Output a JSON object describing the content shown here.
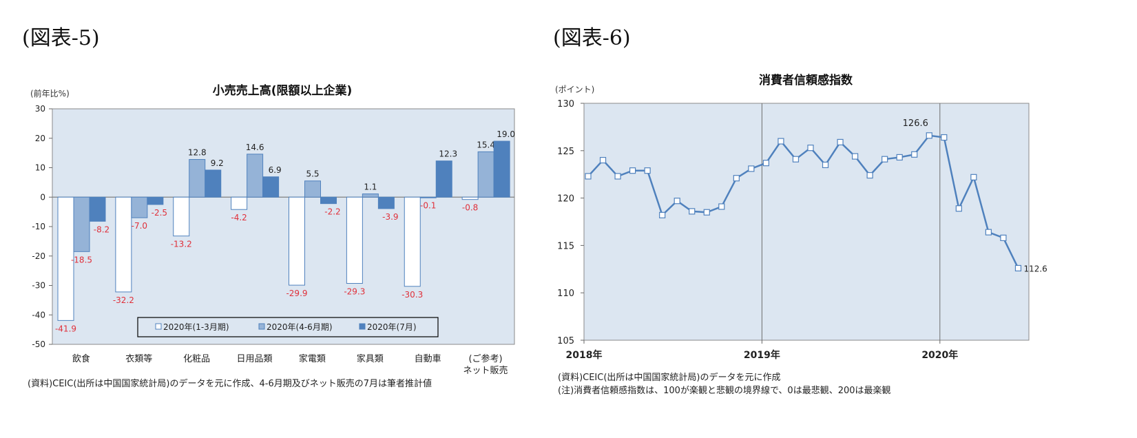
{
  "fig5_label": "(図表-5)",
  "fig6_label": "(図表-6)",
  "charts": {
    "fig5": {
      "title": "小売売上高(限額以上企業)",
      "yunit": "(前年比%)",
      "note": "(資料)CEIC(出所は中国国家統計局)のデータを元に作成、4-6月期及びネット販売の7月は筆者推計値",
      "legend_box_color": "#000000",
      "neg_label_color": "#e0303a"
    },
    "fig6": {
      "title": "消費者信頼感指数",
      "yunit": "(ポイント)",
      "note1": "(資料)CEIC(出所は中国国家統計局)のデータを元に作成",
      "note2": "(注)消費者信頼感指数は、100が楽観と悲観の境界線で、0は最悲観、200は最楽観",
      "peak_label": "126.6",
      "last_label": "112.6"
    }
  },
  "chart_data": [
    {
      "type": "bar",
      "title": "小売売上高(限額以上企業)",
      "ylabel": "(前年比%)",
      "categories": [
        "飲食",
        "衣類等",
        "化粧品",
        "日用品類",
        "家電類",
        "家具類",
        "自動車",
        "(ご参考)\nネット販売"
      ],
      "series": [
        {
          "name": "2020年(1-3月期)",
          "values": [
            -41.9,
            -32.2,
            -13.2,
            -4.2,
            -29.9,
            -29.3,
            -30.3,
            -0.8
          ],
          "color": "#ffffff",
          "stroke": "#4f81bd"
        },
        {
          "name": "2020年(4-6月期)",
          "values": [
            -18.5,
            -7.0,
            12.8,
            14.6,
            5.5,
            1.1,
            -0.1,
            15.4
          ],
          "color": "#95b3d7",
          "stroke": "#4f81bd"
        },
        {
          "name": "2020年(7月)",
          "values": [
            -8.2,
            -2.5,
            9.2,
            6.9,
            -2.2,
            -3.9,
            12.3,
            19.0
          ],
          "color": "#4f81bd",
          "stroke": "#4f81bd"
        }
      ],
      "label_text": [
        [
          "-41.9",
          "-18.5",
          "-8.2"
        ],
        [
          "-32.2",
          "-7.0",
          "-2.5"
        ],
        [
          "-13.2",
          "12.8",
          "9.2"
        ],
        [
          "-4.2",
          "14.6",
          "6.9"
        ],
        [
          "-29.9",
          "5.5",
          "-2.2"
        ],
        [
          "-29.3",
          "1.1",
          "-3.9"
        ],
        [
          "-30.3",
          "-0.1",
          "12.3"
        ],
        [
          "-0.8",
          "15.4",
          "19.0"
        ]
      ],
      "label_visible": [
        [
          true,
          true,
          true
        ],
        [
          true,
          true,
          true
        ],
        [
          true,
          true,
          true
        ],
        [
          true,
          true,
          true
        ],
        [
          true,
          true,
          true
        ],
        [
          true,
          true,
          true
        ],
        [
          true,
          true,
          true
        ],
        [
          true,
          true,
          true
        ]
      ],
      "ylim": [
        -50,
        30
      ],
      "yticks": [
        30,
        20,
        10,
        0,
        -10,
        -20,
        -30,
        -40,
        -50
      ],
      "legend": "bottom-inside",
      "grid": false,
      "plot_bg": "#dce6f1"
    },
    {
      "type": "line",
      "title": "消費者信頼感指数",
      "ylabel": "(ポイント)",
      "x": [
        "2018-01",
        "2018-02",
        "2018-03",
        "2018-04",
        "2018-05",
        "2018-06",
        "2018-07",
        "2018-08",
        "2018-09",
        "2018-10",
        "2018-11",
        "2018-12",
        "2019-01",
        "2019-02",
        "2019-03",
        "2019-04",
        "2019-05",
        "2019-06",
        "2019-07",
        "2019-08",
        "2019-09",
        "2019-10",
        "2019-11",
        "2019-12",
        "2020-01",
        "2020-02",
        "2020-03",
        "2020-04",
        "2020-05",
        "2020-06"
      ],
      "series": [
        {
          "name": "",
          "values": [
            122.3,
            124.0,
            122.3,
            122.9,
            122.9,
            118.2,
            119.7,
            118.6,
            118.5,
            119.1,
            122.1,
            123.1,
            123.7,
            126.0,
            124.1,
            125.3,
            123.5,
            125.9,
            124.4,
            122.4,
            124.1,
            124.3,
            124.6,
            126.6,
            126.4,
            118.9,
            122.2,
            116.4,
            115.8,
            112.6
          ],
          "color": "#4f81bd"
        }
      ],
      "ylim": [
        105,
        130
      ],
      "yticks": [
        130,
        125,
        120,
        115,
        110,
        105
      ],
      "xtick_labels": [
        "2018年",
        "2019年",
        "2020年"
      ],
      "grid": "vertical year lines",
      "plot_bg": "#dce6f1"
    }
  ]
}
